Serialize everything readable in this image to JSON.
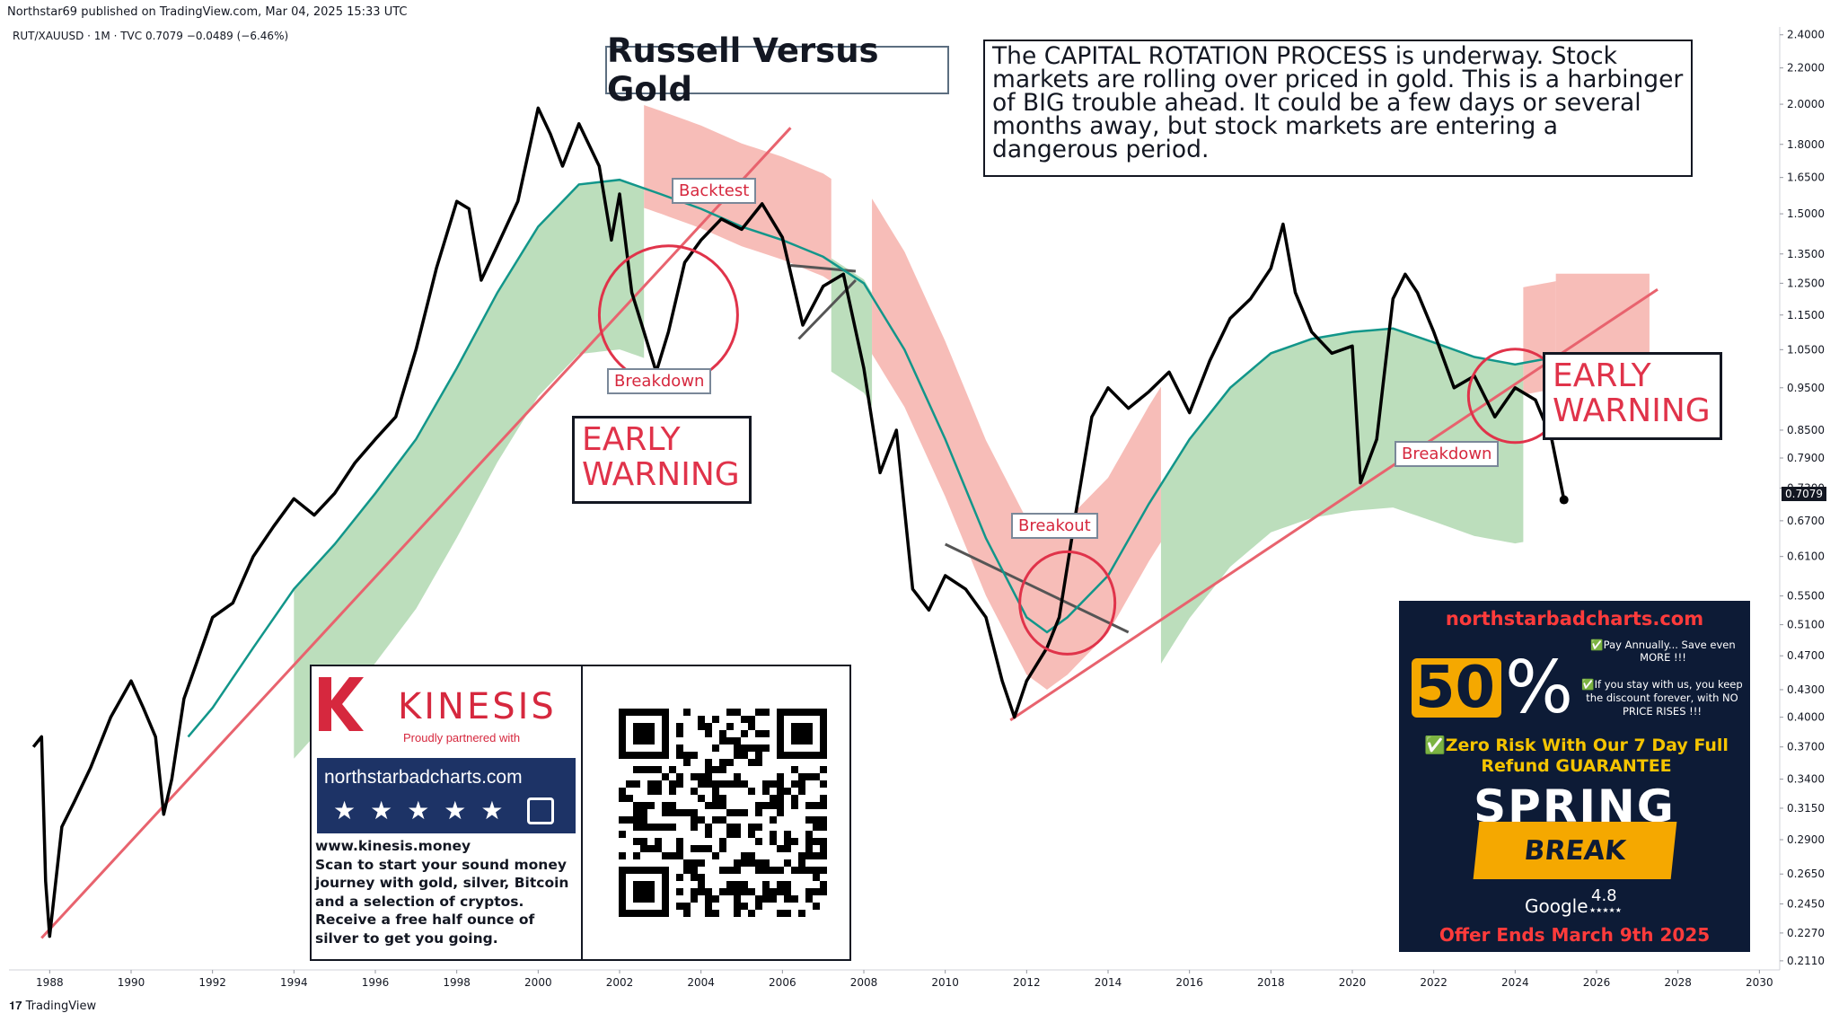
{
  "header": {
    "published": "Northstar69 published on TradingView.com, Mar 04, 2025 15:33 UTC",
    "symbol": "RUT/XAUUSD · 1M · TVC  0.7079  −0.0489 (−6.46%)"
  },
  "colors": {
    "price": "#000000",
    "ma": "#12968a",
    "cloud_up": "#a6d3a6",
    "cloud_down": "#f4a7a0",
    "trendline": "#e8636e",
    "circle": "#e0334a",
    "resistance": "#555555"
  },
  "title": "Russell Versus Gold",
  "description": "The CAPITAL ROTATION PROCESS is underway. Stock markets are rolling over priced in gold. This is a harbinger of BIG trouble ahead. It could be a few days or several months away, but stock markets are entering a dangerous period.",
  "labels": {
    "backtest": "Backtest",
    "breakdown_left": "Breakdown",
    "breakdown_right": "Breakdown",
    "breakout": "Breakout",
    "early_warning_left": [
      "EARLY",
      "WARNING"
    ],
    "early_warning_right": [
      "EARLY",
      "WARNING"
    ]
  },
  "last_price": "0.7079",
  "chart_data": {
    "type": "line",
    "title": "Russell Versus Gold",
    "xlabel": "",
    "ylabel": "",
    "y_scale": "log",
    "xlim": [
      1987.0,
      2030.5
    ],
    "ylim": [
      0.207,
      2.45
    ],
    "x_ticks": [
      "1988",
      "1990",
      "1992",
      "1994",
      "1996",
      "1998",
      "2000",
      "2002",
      "2004",
      "2006",
      "2008",
      "2010",
      "2012",
      "2014",
      "2016",
      "2018",
      "2020",
      "2022",
      "2024",
      "2026",
      "2028",
      "2030"
    ],
    "y_ticks": [
      "2.4000",
      "2.2000",
      "2.0000",
      "1.8000",
      "1.6500",
      "1.5000",
      "1.3500",
      "1.2500",
      "1.1500",
      "1.0500",
      "0.9500",
      "0.8500",
      "0.7900",
      "0.7300",
      "0.6700",
      "0.6100",
      "0.5500",
      "0.5100",
      "0.4700",
      "0.4300",
      "0.4000",
      "0.3700",
      "0.3400",
      "0.3150",
      "0.2900",
      "0.2650",
      "0.2450",
      "0.2270",
      "0.2110"
    ],
    "series": [
      {
        "name": "RUT/XAUUSD",
        "points": [
          [
            1987.6,
            0.37
          ],
          [
            1987.8,
            0.38
          ],
          [
            1987.9,
            0.26
          ],
          [
            1988.0,
            0.225
          ],
          [
            1988.3,
            0.3
          ],
          [
            1988.6,
            0.32
          ],
          [
            1989.0,
            0.35
          ],
          [
            1989.5,
            0.4
          ],
          [
            1990.0,
            0.44
          ],
          [
            1990.3,
            0.41
          ],
          [
            1990.6,
            0.38
          ],
          [
            1990.8,
            0.31
          ],
          [
            1991.0,
            0.34
          ],
          [
            1991.3,
            0.42
          ],
          [
            1991.6,
            0.46
          ],
          [
            1992.0,
            0.52
          ],
          [
            1992.5,
            0.54
          ],
          [
            1993.0,
            0.61
          ],
          [
            1993.5,
            0.66
          ],
          [
            1994.0,
            0.71
          ],
          [
            1994.5,
            0.68
          ],
          [
            1995.0,
            0.72
          ],
          [
            1995.5,
            0.78
          ],
          [
            1996.0,
            0.83
          ],
          [
            1996.5,
            0.88
          ],
          [
            1997.0,
            1.05
          ],
          [
            1997.5,
            1.3
          ],
          [
            1998.0,
            1.55
          ],
          [
            1998.3,
            1.52
          ],
          [
            1998.6,
            1.26
          ],
          [
            1999.0,
            1.38
          ],
          [
            1999.5,
            1.55
          ],
          [
            2000.0,
            1.98
          ],
          [
            2000.3,
            1.85
          ],
          [
            2000.6,
            1.7
          ],
          [
            2001.0,
            1.9
          ],
          [
            2001.5,
            1.7
          ],
          [
            2001.8,
            1.4
          ],
          [
            2002.0,
            1.58
          ],
          [
            2002.3,
            1.22
          ],
          [
            2002.6,
            1.1
          ],
          [
            2002.9,
            0.99
          ],
          [
            2003.2,
            1.1
          ],
          [
            2003.6,
            1.32
          ],
          [
            2004.0,
            1.4
          ],
          [
            2004.5,
            1.48
          ],
          [
            2005.0,
            1.44
          ],
          [
            2005.5,
            1.54
          ],
          [
            2006.0,
            1.41
          ],
          [
            2006.5,
            1.12
          ],
          [
            2007.0,
            1.24
          ],
          [
            2007.5,
            1.28
          ],
          [
            2008.0,
            1.0
          ],
          [
            2008.4,
            0.76
          ],
          [
            2008.8,
            0.85
          ],
          [
            2009.2,
            0.56
          ],
          [
            2009.6,
            0.53
          ],
          [
            2010.0,
            0.58
          ],
          [
            2010.5,
            0.56
          ],
          [
            2011.0,
            0.52
          ],
          [
            2011.4,
            0.44
          ],
          [
            2011.7,
            0.4
          ],
          [
            2012.0,
            0.44
          ],
          [
            2012.5,
            0.48
          ],
          [
            2012.8,
            0.52
          ],
          [
            2013.2,
            0.68
          ],
          [
            2013.6,
            0.88
          ],
          [
            2014.0,
            0.95
          ],
          [
            2014.5,
            0.9
          ],
          [
            2015.0,
            0.94
          ],
          [
            2015.5,
            0.99
          ],
          [
            2016.0,
            0.89
          ],
          [
            2016.5,
            1.02
          ],
          [
            2017.0,
            1.14
          ],
          [
            2017.5,
            1.2
          ],
          [
            2018.0,
            1.3
          ],
          [
            2018.3,
            1.46
          ],
          [
            2018.6,
            1.22
          ],
          [
            2019.0,
            1.1
          ],
          [
            2019.5,
            1.04
          ],
          [
            2020.0,
            1.06
          ],
          [
            2020.2,
            0.74
          ],
          [
            2020.6,
            0.83
          ],
          [
            2021.0,
            1.2
          ],
          [
            2021.3,
            1.28
          ],
          [
            2021.6,
            1.22
          ],
          [
            2022.0,
            1.1
          ],
          [
            2022.5,
            0.95
          ],
          [
            2023.0,
            0.98
          ],
          [
            2023.5,
            0.88
          ],
          [
            2024.0,
            0.95
          ],
          [
            2024.5,
            0.92
          ],
          [
            2024.9,
            0.83
          ],
          [
            2025.2,
            0.7079
          ]
        ]
      },
      {
        "name": "moving average",
        "points": [
          [
            1991.4,
            0.38
          ],
          [
            1992.0,
            0.41
          ],
          [
            1993.0,
            0.48
          ],
          [
            1994.0,
            0.56
          ],
          [
            1995.0,
            0.63
          ],
          [
            1996.0,
            0.72
          ],
          [
            1997.0,
            0.83
          ],
          [
            1998.0,
            1.0
          ],
          [
            1999.0,
            1.22
          ],
          [
            2000.0,
            1.45
          ],
          [
            2001.0,
            1.62
          ],
          [
            2002.0,
            1.64
          ],
          [
            2003.0,
            1.58
          ],
          [
            2004.0,
            1.52
          ],
          [
            2005.0,
            1.45
          ],
          [
            2006.0,
            1.4
          ],
          [
            2007.0,
            1.34
          ],
          [
            2008.0,
            1.25
          ],
          [
            2009.0,
            1.05
          ],
          [
            2010.0,
            0.83
          ],
          [
            2011.0,
            0.64
          ],
          [
            2012.0,
            0.52
          ],
          [
            2012.5,
            0.5
          ],
          [
            2013.0,
            0.52
          ],
          [
            2014.0,
            0.58
          ],
          [
            2015.0,
            0.7
          ],
          [
            2016.0,
            0.83
          ],
          [
            2017.0,
            0.95
          ],
          [
            2018.0,
            1.04
          ],
          [
            2019.0,
            1.08
          ],
          [
            2020.0,
            1.1
          ],
          [
            2021.0,
            1.11
          ],
          [
            2022.0,
            1.07
          ],
          [
            2023.0,
            1.03
          ],
          [
            2024.0,
            1.01
          ],
          [
            2025.0,
            1.03
          ]
        ]
      }
    ]
  },
  "kinesis": {
    "brand": "KINESIS",
    "partner": "Proudly partnered with",
    "site": "northstarbadcharts.com",
    "url": "www.kinesis.money",
    "text": "Scan to start your sound money journey with gold, silver, Bitcoin and a selection of cryptos. Receive a free half ounce of silver to get you going."
  },
  "ad": {
    "site": "northstarbadcharts.com",
    "discount": "50",
    "percent": "%",
    "bullet1": "✅Pay Annually... Save even MORE !!!",
    "bullet2": "✅If you stay with us, you keep the discount forever, with NO PRICE RISES !!!",
    "guarantee": "✅Zero Risk With Our 7 Day Full Refund GUARANTEE",
    "spring": "SPRING",
    "break": "BREAK",
    "google": "Google",
    "rating": "4.8",
    "stars": "★★★★★",
    "offer": "Offer Ends March 9th 2025"
  },
  "footer": {
    "brand": "TradingView"
  }
}
